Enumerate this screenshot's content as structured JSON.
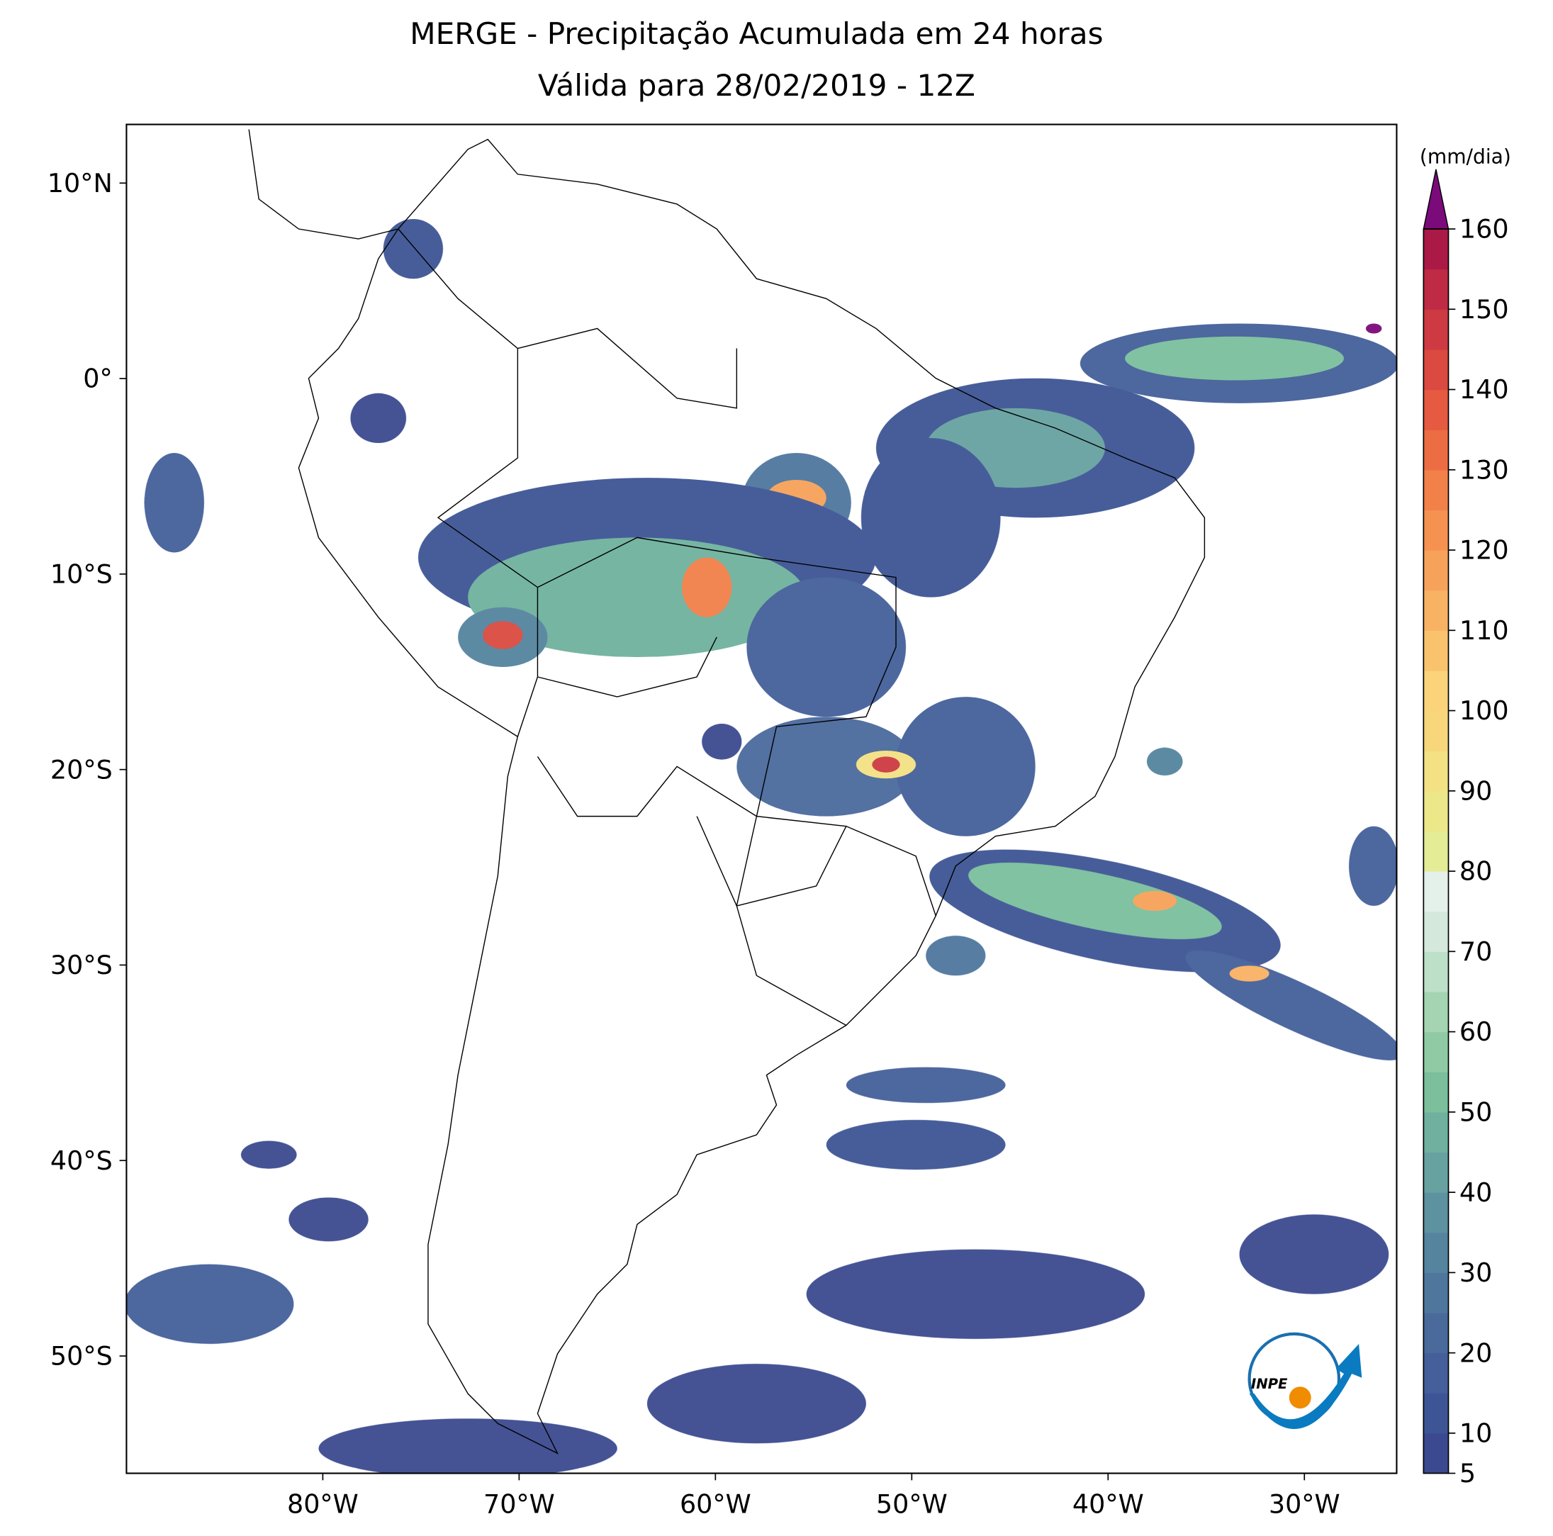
{
  "chart_data": {
    "type": "map",
    "title": "MERGE - Precipitação Acumulada em 24 horas",
    "subtitle": "Válida para 28/02/2019 - 12Z",
    "xlim": [
      -90,
      -25.3
    ],
    "ylim": [
      -56,
      13
    ],
    "xticks": [
      {
        "value": -80,
        "label": "80°W"
      },
      {
        "value": -70,
        "label": "70°W"
      },
      {
        "value": -60,
        "label": "60°W"
      },
      {
        "value": -50,
        "label": "50°W"
      },
      {
        "value": -40,
        "label": "40°W"
      },
      {
        "value": -30,
        "label": "30°W"
      }
    ],
    "yticks": [
      {
        "value": 10,
        "label": "10°N"
      },
      {
        "value": 0,
        "label": "0°"
      },
      {
        "value": -10,
        "label": "10°S"
      },
      {
        "value": -20,
        "label": "20°S"
      },
      {
        "value": -30,
        "label": "30°S"
      },
      {
        "value": -40,
        "label": "40°S"
      },
      {
        "value": -50,
        "label": "50°S"
      }
    ],
    "colorbar": {
      "label": "(mm/dia)",
      "lim": [
        5,
        160
      ],
      "ticks": [
        5,
        10,
        20,
        30,
        40,
        50,
        60,
        70,
        80,
        90,
        100,
        110,
        120,
        130,
        140,
        150,
        160
      ],
      "levels": [
        5,
        10,
        15,
        20,
        25,
        30,
        35,
        40,
        45,
        50,
        55,
        60,
        65,
        70,
        75,
        80,
        85,
        90,
        95,
        100,
        105,
        110,
        115,
        120,
        125,
        130,
        135,
        140,
        145,
        150,
        155,
        160
      ],
      "colors": [
        "#3b4a90",
        "#3e5595",
        "#445f9a",
        "#4a6a9c",
        "#4f779e",
        "#55849f",
        "#5d92a0",
        "#67a2a1",
        "#6fb19e",
        "#7bbf9d",
        "#8fcaa5",
        "#a4d4b2",
        "#bde0c8",
        "#d4e9dc",
        "#e4f0ea",
        "#e4ec96",
        "#ece88a",
        "#f3e184",
        "#f7d67c",
        "#fad37a",
        "#f9c26c",
        "#f8b264",
        "#f7a25a",
        "#f59252",
        "#f28049",
        "#ec6c43",
        "#e55a40",
        "#da4a40",
        "#cd3a42",
        "#bf2a44",
        "#ab1a47"
      ],
      "extend_color": "#7b0a7a"
    },
    "logo": "INPE"
  }
}
